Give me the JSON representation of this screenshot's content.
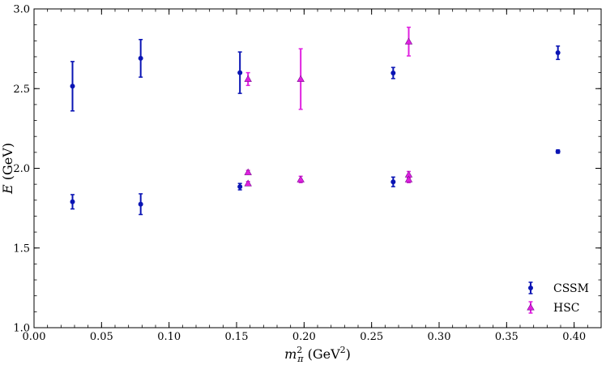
{
  "chart_data": {
    "type": "scatter",
    "xlabel_main": "m",
    "xlabel_sub": "π",
    "xlabel_sup": "2",
    "xlabel_units": " (GeV",
    "xlabel_units_sup": "2",
    "xlabel_units_close": ")",
    "ylabel_main": "E",
    "ylabel_units": " (GeV)",
    "xlim": [
      0.0,
      0.42
    ],
    "ylim": [
      1.0,
      3.0
    ],
    "xticks": [
      "0.00",
      "0.05",
      "0.10",
      "0.15",
      "0.20",
      "0.25",
      "0.30",
      "0.35",
      "0.40"
    ],
    "xtick_values": [
      0.0,
      0.05,
      0.1,
      0.15,
      0.2,
      0.25,
      0.3,
      0.35,
      0.4
    ],
    "yticks": [
      "1.0",
      "1.5",
      "2.0",
      "2.5",
      "3.0"
    ],
    "ytick_values": [
      1.0,
      1.5,
      2.0,
      2.5,
      3.0
    ],
    "legend_position": "bottom-right",
    "series": [
      {
        "name": "CSSM",
        "color": "#0a14b4",
        "marker": "circle",
        "points": [
          {
            "x": 0.0285,
            "y": 2.515,
            "err": 0.155
          },
          {
            "x": 0.0285,
            "y": 1.79,
            "err": 0.045
          },
          {
            "x": 0.079,
            "y": 2.69,
            "err": 0.118
          },
          {
            "x": 0.079,
            "y": 1.775,
            "err": 0.065
          },
          {
            "x": 0.1525,
            "y": 2.6,
            "err": 0.13
          },
          {
            "x": 0.1525,
            "y": 1.885,
            "err": 0.02
          },
          {
            "x": 0.266,
            "y": 2.598,
            "err": 0.035
          },
          {
            "x": 0.266,
            "y": 1.915,
            "err": 0.03
          },
          {
            "x": 0.388,
            "y": 2.725,
            "err": 0.042
          },
          {
            "x": 0.388,
            "y": 2.105,
            "err": 0.01
          }
        ]
      },
      {
        "name": "HSC",
        "color": "#e020e0",
        "marker": "triangle",
        "points": [
          {
            "x": 0.1585,
            "y": 2.56,
            "err": 0.04
          },
          {
            "x": 0.1585,
            "y": 1.975,
            "err": 0.012
          },
          {
            "x": 0.1585,
            "y": 1.905,
            "err": 0.012
          },
          {
            "x": 0.1975,
            "y": 2.56,
            "err": 0.19
          },
          {
            "x": 0.1975,
            "y": 1.93,
            "err": 0.02
          },
          {
            "x": 0.2775,
            "y": 2.795,
            "err": 0.09
          },
          {
            "x": 0.2775,
            "y": 1.96,
            "err": 0.02
          },
          {
            "x": 0.2775,
            "y": 1.93,
            "err": 0.02
          }
        ]
      }
    ]
  }
}
